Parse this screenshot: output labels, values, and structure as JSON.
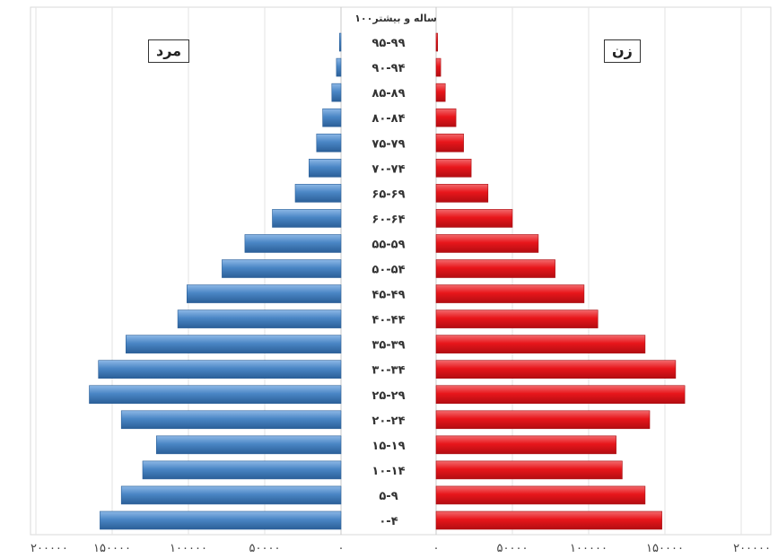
{
  "chart_data": {
    "type": "bar",
    "orientation": "horizontal",
    "layout": "population-pyramid",
    "categories": [
      "۰-۴",
      "۵-۹",
      "۱۰-۱۴",
      "۱۵-۱۹",
      "۲۰-۲۴",
      "۲۵-۲۹",
      "۳۰-۳۴",
      "۳۵-۳۹",
      "۴۰-۴۴",
      "۴۵-۴۹",
      "۵۰-۵۴",
      "۵۵-۵۹",
      "۶۰-۶۴",
      "۶۵-۶۹",
      "۷۰-۷۴",
      "۷۵-۷۹",
      "۸۰-۸۴",
      "۸۵-۸۹",
      "۹۰-۹۴",
      "۹۵-۹۹",
      "۱۰۰ساله و بیشتر"
    ],
    "series": [
      {
        "name": "مرد",
        "side": "left",
        "color": "#4a86c5",
        "values": [
          158000,
          144000,
          130000,
          121000,
          144000,
          165000,
          159000,
          141000,
          107000,
          101000,
          78000,
          63000,
          45000,
          30000,
          21000,
          16000,
          12000,
          6000,
          3000,
          1000,
          0
        ]
      },
      {
        "name": "زن",
        "side": "right",
        "color": "#e8161b",
        "values": [
          148000,
          137000,
          122000,
          118000,
          140000,
          163000,
          157000,
          137000,
          106000,
          97000,
          78000,
          67000,
          50000,
          34000,
          23000,
          18000,
          13000,
          6000,
          3000,
          1000,
          0
        ]
      }
    ],
    "xlim": [
      0,
      200000
    ],
    "left_ticks": [
      "۲۰۰۰۰۰",
      "۱۵۰۰۰۰",
      "۱۰۰۰۰۰",
      "۵۰۰۰۰",
      "۰"
    ],
    "right_ticks": [
      "۰",
      "۵۰۰۰۰",
      "۱۰۰۰۰۰",
      "۱۵۰۰۰۰",
      "۲۰۰۰۰۰"
    ],
    "grid": true
  }
}
